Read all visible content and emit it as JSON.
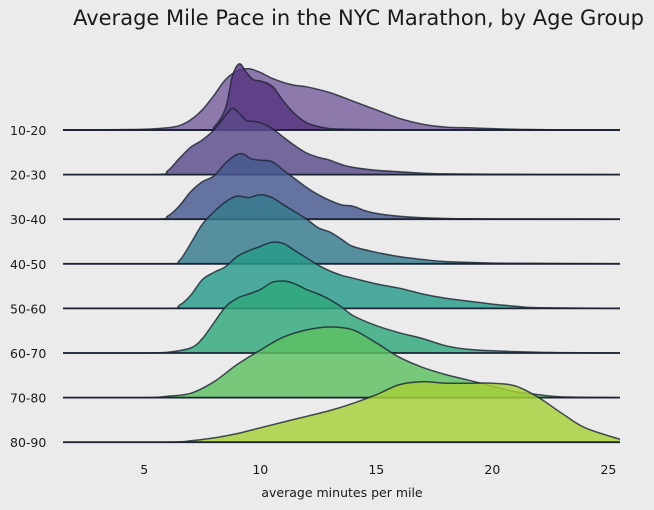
{
  "chart_data": {
    "type": "area",
    "subtype": "ridgeline",
    "title": "Average Mile Pace in the NYC Marathon, by Age Group",
    "xlabel": "average minutes per mile",
    "ylabel": "",
    "xlim": [
      1.5,
      25.5
    ],
    "xticks": [
      5,
      10,
      15,
      20,
      25
    ],
    "grid": false,
    "legend": "none",
    "categories": [
      "10-20",
      "20-30",
      "30-40",
      "40-50",
      "50-60",
      "60-70",
      "70-80",
      "80-90"
    ],
    "series": [
      {
        "name": "10-20",
        "color": "#6a4c93",
        "x": [
          1.5,
          4,
          5,
          6,
          6.5,
          7,
          7.5,
          8,
          8.5,
          9,
          9.5,
          10,
          10.5,
          11,
          11.5,
          12,
          13,
          14,
          15,
          16,
          17,
          18,
          19,
          20,
          21,
          22,
          23,
          25.5
        ],
        "y": [
          0,
          0.005,
          0.01,
          0.03,
          0.06,
          0.14,
          0.28,
          0.48,
          0.7,
          0.82,
          0.85,
          0.8,
          0.72,
          0.66,
          0.62,
          0.6,
          0.52,
          0.4,
          0.28,
          0.16,
          0.08,
          0.04,
          0.03,
          0.02,
          0.01,
          0.005,
          0,
          0
        ]
      },
      {
        "name": "10-20",
        "color": "#55347f",
        "x": [
          1.5,
          7.5,
          8,
          8.5,
          8.8,
          9.1,
          9.4,
          9.7,
          10,
          10.3,
          10.6,
          11,
          11.5,
          12,
          12.5,
          13,
          14,
          15,
          16,
          17,
          18,
          19,
          25.5
        ],
        "y": [
          0,
          0,
          0.04,
          0.3,
          0.75,
          0.92,
          0.8,
          0.7,
          0.68,
          0.65,
          0.58,
          0.4,
          0.22,
          0.1,
          0.05,
          0.02,
          0.01,
          0.005,
          0.003,
          0.002,
          0.001,
          0,
          0
        ]
      },
      {
        "name": "20-30",
        "color": "#5a4a8a",
        "x": [
          1.5,
          5.5,
          6,
          6.5,
          7,
          7.5,
          8,
          8.5,
          8.8,
          9.1,
          9.4,
          9.7,
          10,
          10.3,
          10.6,
          11,
          11.5,
          12,
          12.5,
          13,
          13.5,
          14,
          15,
          16,
          17,
          18,
          20,
          22,
          25.5
        ],
        "y": [
          0,
          0,
          0.05,
          0.22,
          0.38,
          0.48,
          0.62,
          0.82,
          0.92,
          0.85,
          0.75,
          0.74,
          0.72,
          0.68,
          0.62,
          0.52,
          0.4,
          0.3,
          0.24,
          0.2,
          0.14,
          0.1,
          0.06,
          0.04,
          0.02,
          0.01,
          0.005,
          0.002,
          0
        ]
      },
      {
        "name": "30-40",
        "color": "#46588f",
        "x": [
          1.5,
          5.5,
          6,
          6.5,
          7,
          7.5,
          8,
          8.5,
          9,
          9.3,
          9.6,
          10,
          10.5,
          11,
          11.5,
          12,
          12.5,
          13,
          13.5,
          14,
          14.5,
          15,
          16,
          17,
          18,
          19,
          20,
          22,
          25.5
        ],
        "y": [
          0,
          0,
          0.04,
          0.18,
          0.38,
          0.52,
          0.6,
          0.78,
          0.9,
          0.9,
          0.84,
          0.82,
          0.8,
          0.68,
          0.56,
          0.44,
          0.34,
          0.26,
          0.2,
          0.18,
          0.12,
          0.08,
          0.04,
          0.02,
          0.01,
          0.005,
          0.003,
          0.001,
          0
        ]
      },
      {
        "name": "40-50",
        "color": "#357a8c",
        "x": [
          1.5,
          6,
          6.5,
          7,
          7.5,
          8,
          8.5,
          9,
          9.5,
          10,
          10.5,
          11,
          11.5,
          12,
          12.5,
          13,
          13.5,
          14,
          15,
          16,
          17,
          18,
          19,
          20,
          22,
          25.5
        ],
        "y": [
          0,
          0,
          0.04,
          0.28,
          0.55,
          0.72,
          0.86,
          0.94,
          0.92,
          0.96,
          0.92,
          0.82,
          0.72,
          0.62,
          0.5,
          0.44,
          0.34,
          0.24,
          0.16,
          0.1,
          0.06,
          0.03,
          0.02,
          0.01,
          0.005,
          0
        ]
      },
      {
        "name": "50-60",
        "color": "#289b8a",
        "x": [
          1.5,
          6,
          6.5,
          7,
          7.5,
          8,
          8.5,
          9,
          9.5,
          10,
          10.5,
          11,
          11.5,
          12,
          12.5,
          13,
          13.5,
          14,
          15,
          16,
          17,
          18,
          19,
          20,
          21,
          22,
          25.5
        ],
        "y": [
          0,
          0,
          0.04,
          0.18,
          0.4,
          0.5,
          0.58,
          0.72,
          0.8,
          0.86,
          0.92,
          0.9,
          0.8,
          0.7,
          0.6,
          0.52,
          0.46,
          0.42,
          0.34,
          0.28,
          0.2,
          0.14,
          0.1,
          0.06,
          0.03,
          0.01,
          0
        ]
      },
      {
        "name": "60-70",
        "color": "#30a87b",
        "x": [
          1.5,
          5,
          6,
          7,
          7.5,
          8,
          8.5,
          9,
          9.5,
          10,
          10.5,
          11,
          11.5,
          12,
          12.5,
          13,
          13.5,
          14,
          15,
          16,
          17,
          18,
          19,
          20,
          21,
          22,
          23,
          25.5
        ],
        "y": [
          0,
          0,
          0.01,
          0.07,
          0.2,
          0.42,
          0.64,
          0.76,
          0.82,
          0.88,
          0.98,
          1.0,
          0.96,
          0.88,
          0.82,
          0.74,
          0.64,
          0.52,
          0.38,
          0.28,
          0.2,
          0.1,
          0.05,
          0.03,
          0.02,
          0.01,
          0.005,
          0
        ]
      },
      {
        "name": "70-80",
        "color": "#5dc062",
        "x": [
          1.5,
          5,
          6,
          7,
          8,
          9,
          10,
          11,
          12,
          13,
          14,
          15,
          16,
          17,
          18,
          19,
          20,
          21,
          22,
          23,
          25.5
        ],
        "y": [
          0,
          0,
          0.02,
          0.06,
          0.22,
          0.46,
          0.66,
          0.84,
          0.94,
          0.98,
          0.94,
          0.76,
          0.56,
          0.42,
          0.32,
          0.24,
          0.16,
          0.08,
          0.04,
          0.01,
          0
        ]
      },
      {
        "name": "80-90",
        "color": "#a6cf38",
        "x": [
          1.5,
          6,
          7,
          8,
          9,
          10,
          11,
          12,
          13,
          14,
          15,
          16,
          17,
          18,
          19,
          20,
          21,
          22,
          23,
          24,
          25.5
        ],
        "y": [
          0,
          0,
          0.02,
          0.06,
          0.12,
          0.2,
          0.28,
          0.36,
          0.44,
          0.54,
          0.66,
          0.8,
          0.84,
          0.82,
          0.82,
          0.82,
          0.78,
          0.62,
          0.4,
          0.2,
          0.04
        ]
      }
    ],
    "overlay_series_note_index": 1
  }
}
